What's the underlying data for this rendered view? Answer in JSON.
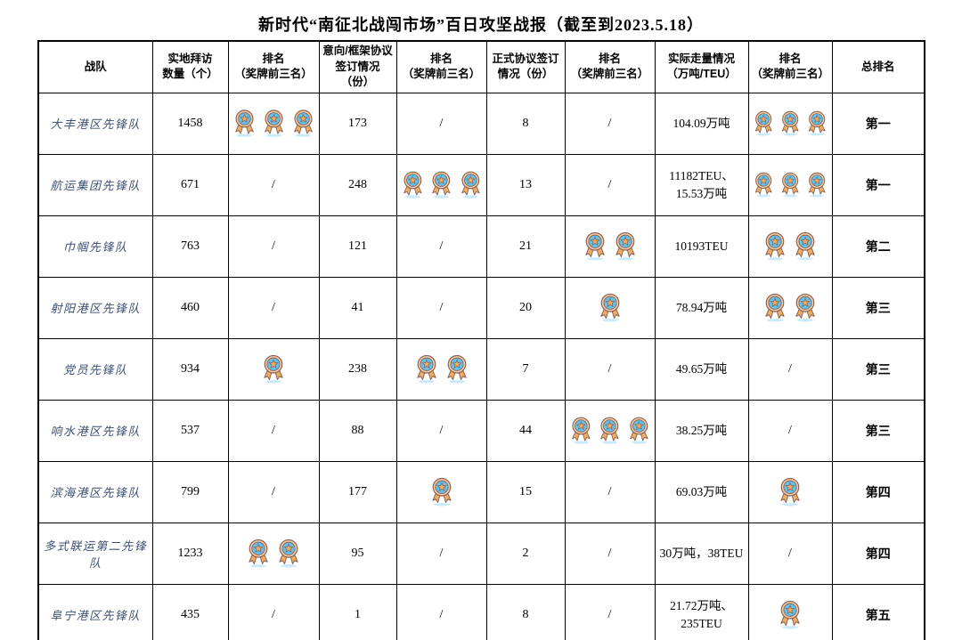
{
  "title": "新时代“南征北战闯市场”百日攻坚战报（截至到2023.5.18）",
  "colors": {
    "medal_ring": "#F6CFA7",
    "medal_inner": "#5FC2EF",
    "medal_star": "#F2AE60",
    "medal_outline": "#8A6054",
    "medal_shadow": "#C9EAFA",
    "team_name": "#3d4f73"
  },
  "table": {
    "columns": [
      {
        "label": "战队"
      },
      {
        "label": "实地拜访\n数量（个）"
      },
      {
        "label": "排名\n（奖牌前三名）"
      },
      {
        "label": "意向/框架协议\n签订情况（份）"
      },
      {
        "label": "排名\n（奖牌前三名）"
      },
      {
        "label": "正式协议签订\n情况（份）"
      },
      {
        "label": "排名\n（奖牌前三名）"
      },
      {
        "label": "实际走量情况\n（万吨/TEU）"
      },
      {
        "label": "排名\n（奖牌前三名）"
      },
      {
        "label": "总排名"
      }
    ],
    "medal_note": "numeric rank values = number of medal icons shown; \"/\" = no medal",
    "rows": [
      {
        "team": "大丰港区先锋队",
        "visits": "1458",
        "visits_rank": 3,
        "intent": "173",
        "intent_rank": "/",
        "formal": "8",
        "formal_rank": "/",
        "volume": "104.09万吨",
        "volume_rank": 3,
        "total_rank": "第一"
      },
      {
        "team": "航运集团先锋队",
        "visits": "671",
        "visits_rank": "/",
        "intent": "248",
        "intent_rank": 3,
        "formal": "13",
        "formal_rank": "/",
        "volume": "11182TEU、15.53万吨",
        "volume_rank": 3,
        "total_rank": "第一"
      },
      {
        "team": "巾帼先锋队",
        "visits": "763",
        "visits_rank": "/",
        "intent": "121",
        "intent_rank": "/",
        "formal": "21",
        "formal_rank": 2,
        "volume": "10193TEU",
        "volume_rank": 2,
        "total_rank": "第二"
      },
      {
        "team": "射阳港区先锋队",
        "visits": "460",
        "visits_rank": "/",
        "intent": "41",
        "intent_rank": "/",
        "formal": "20",
        "formal_rank": 1,
        "volume": "78.94万吨",
        "volume_rank": 2,
        "total_rank": "第三"
      },
      {
        "team": "党员先锋队",
        "visits": "934",
        "visits_rank": 1,
        "intent": "238",
        "intent_rank": 2,
        "formal": "7",
        "formal_rank": "/",
        "volume": "49.65万吨",
        "volume_rank": "/",
        "total_rank": "第三"
      },
      {
        "team": "响水港区先锋队",
        "visits": "537",
        "visits_rank": "/",
        "intent": "88",
        "intent_rank": "/",
        "formal": "44",
        "formal_rank": 3,
        "volume": "38.25万吨",
        "volume_rank": "/",
        "total_rank": "第三"
      },
      {
        "team": "滨海港区先锋队",
        "visits": "799",
        "visits_rank": "/",
        "intent": "177",
        "intent_rank": 1,
        "formal": "15",
        "formal_rank": "/",
        "volume": "69.03万吨",
        "volume_rank": 1,
        "total_rank": "第四"
      },
      {
        "team": "多式联运第二先锋队",
        "visits": "1233",
        "visits_rank": 2,
        "intent": "95",
        "intent_rank": "/",
        "formal": "2",
        "formal_rank": "/",
        "volume": "30万吨，38TEU",
        "volume_rank": "/",
        "total_rank": "第四"
      },
      {
        "team": "阜宁港区先锋队",
        "visits": "435",
        "visits_rank": "/",
        "intent": "1",
        "intent_rank": "/",
        "formal": "8",
        "formal_rank": "/",
        "volume": "21.72万吨、235TEU",
        "volume_rank": 1,
        "total_rank": "第五"
      }
    ]
  }
}
